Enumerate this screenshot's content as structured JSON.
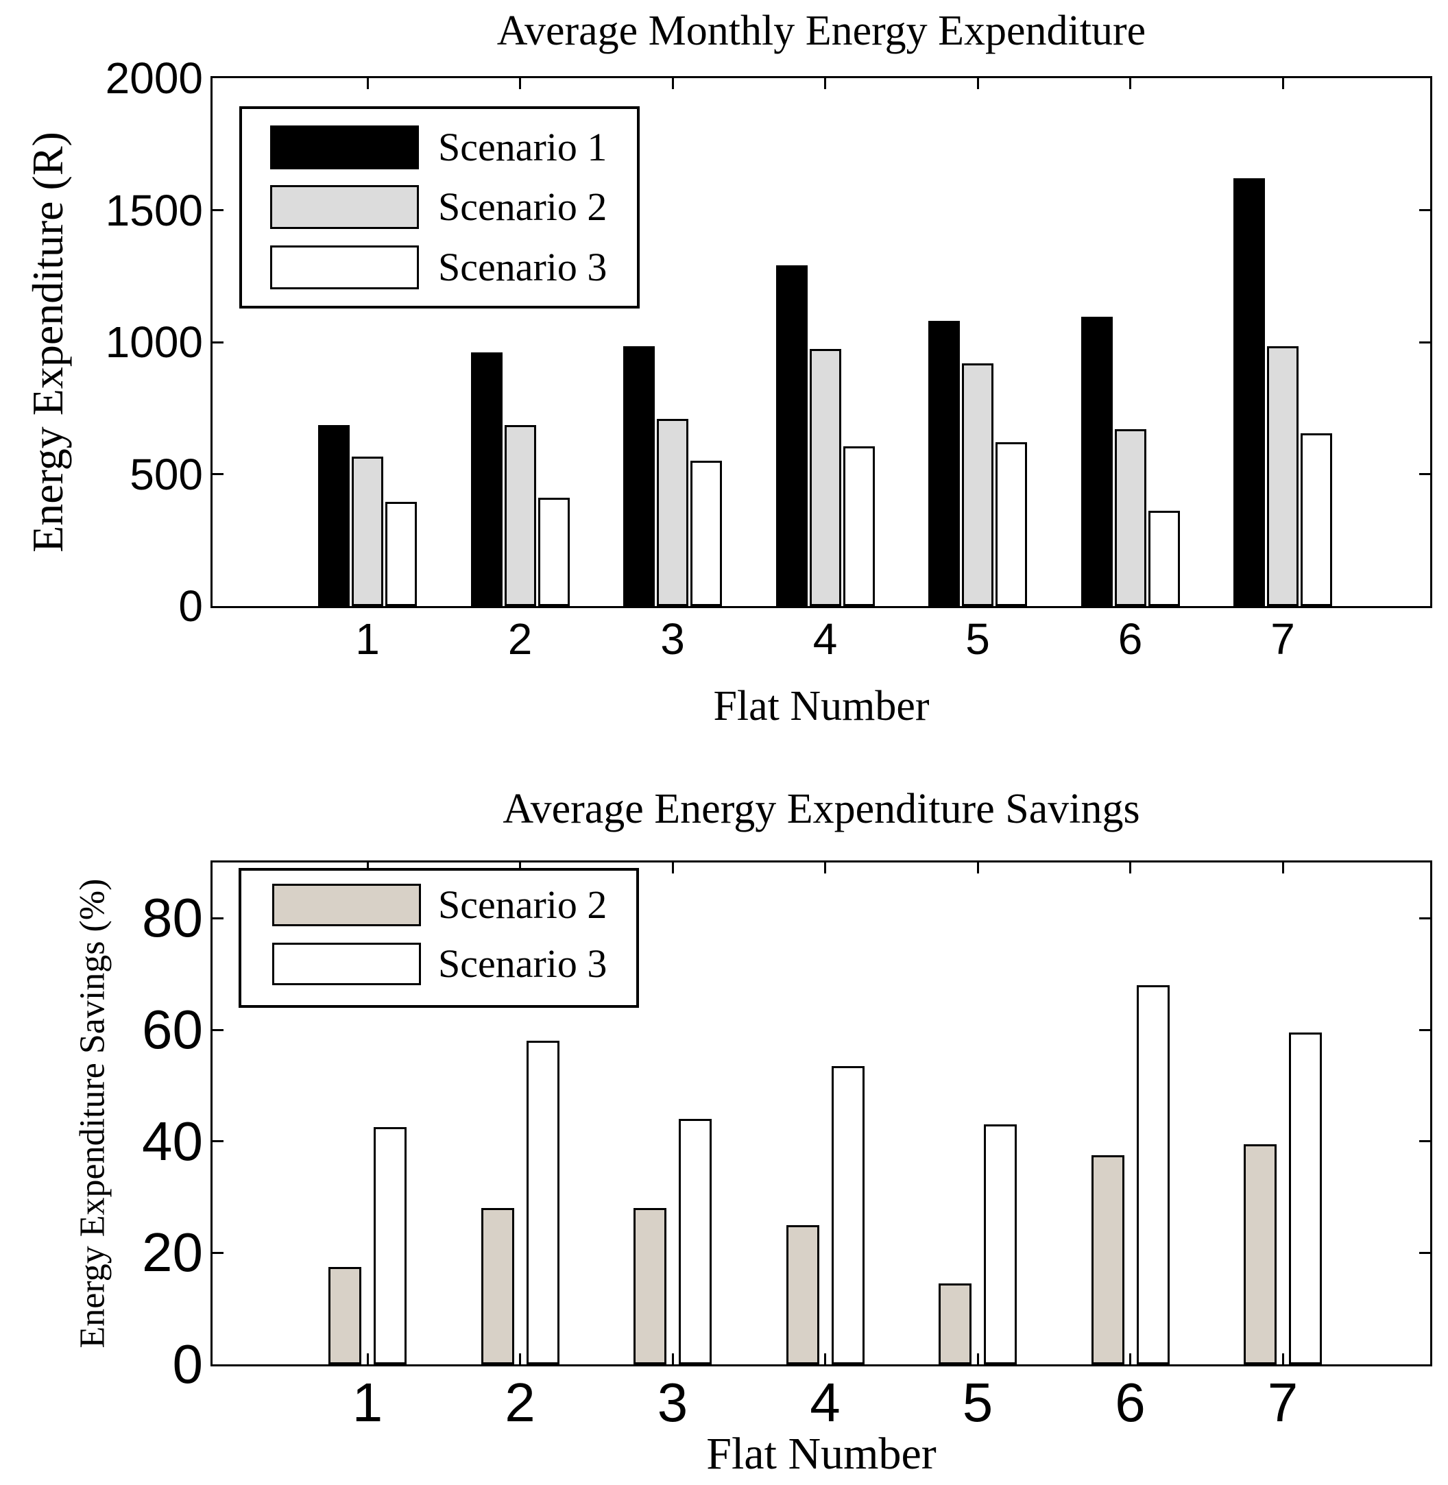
{
  "figure": {
    "background": "#ffffff",
    "axis_color": "#000000",
    "bar_outline_color": "#000000"
  },
  "chart_data": [
    {
      "type": "bar",
      "title": "Average Monthly Energy Expenditure",
      "xlabel": "Flat Number",
      "ylabel": "Energy Expenditure (R)",
      "categories": [
        "1",
        "2",
        "3",
        "4",
        "5",
        "6",
        "7"
      ],
      "ylim": [
        0,
        2000
      ],
      "y_ticks": [
        0,
        500,
        1000,
        1500,
        2000
      ],
      "grid": false,
      "legend_position": "upper-left-inside",
      "legend_entries": [
        "Scenario 1",
        "Scenario 2",
        "Scenario 3"
      ],
      "series": [
        {
          "name": "Scenario 1",
          "fill": "#000000",
          "values": [
            685,
            960,
            985,
            1290,
            1080,
            1095,
            1620
          ]
        },
        {
          "name": "Scenario 2",
          "fill": "#dcdcdc",
          "values": [
            565,
            685,
            710,
            975,
            920,
            670,
            985
          ]
        },
        {
          "name": "Scenario 3",
          "fill": "#ffffff",
          "values": [
            395,
            410,
            550,
            605,
            620,
            360,
            655
          ]
        }
      ]
    },
    {
      "type": "bar",
      "title": "Average Energy Expenditure Savings",
      "xlabel": "Flat Number",
      "ylabel": "Energy Expenditure Savings (%)",
      "categories": [
        "1",
        "2",
        "3",
        "4",
        "5",
        "6",
        "7"
      ],
      "ylim": [
        0,
        90
      ],
      "y_ticks": [
        0,
        20,
        40,
        60,
        80
      ],
      "grid": false,
      "legend_position": "upper-left-inside",
      "legend_entries": [
        "Scenario 2",
        "Scenario 3"
      ],
      "series": [
        {
          "name": "Scenario 2",
          "fill": "#d8d1c7",
          "values": [
            17.5,
            28,
            28,
            25,
            14.5,
            37.5,
            39.5
          ]
        },
        {
          "name": "Scenario 3",
          "fill": "#ffffff",
          "values": [
            42.5,
            58,
            44,
            53.5,
            43,
            68,
            59.5
          ]
        }
      ]
    }
  ]
}
